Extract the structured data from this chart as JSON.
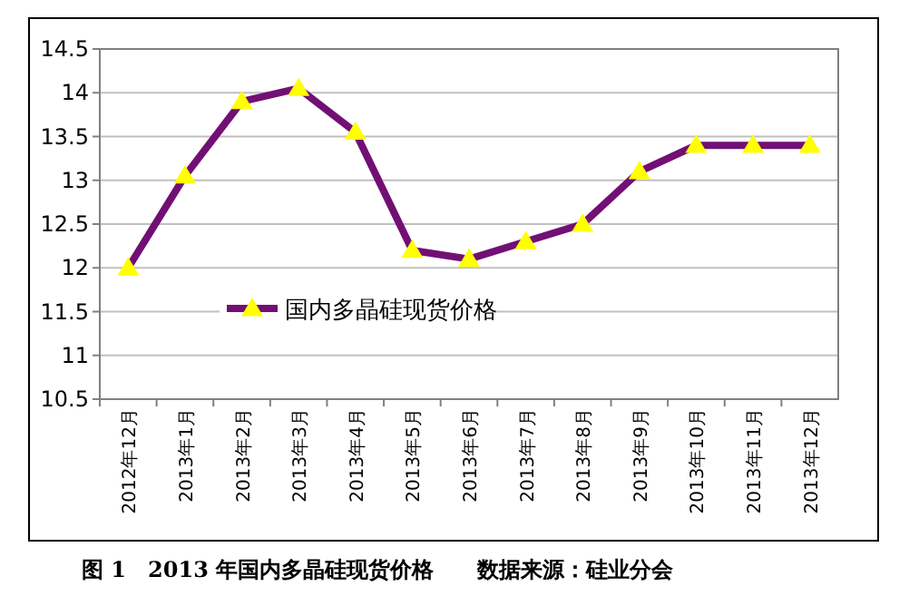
{
  "chart_data": {
    "type": "line",
    "categories": [
      "2012年12月",
      "2013年1月",
      "2013年2月",
      "2013年3月",
      "2013年4月",
      "2013年5月",
      "2013年6月",
      "2013年7月",
      "2013年8月",
      "2013年9月",
      "2013年10月",
      "2013年11月",
      "2013年12月"
    ],
    "series": [
      {
        "name": "国内多晶硅现货价格",
        "color": "#720f74",
        "values": [
          12.0,
          13.05,
          13.9,
          14.05,
          13.55,
          12.2,
          12.1,
          12.3,
          12.5,
          13.1,
          13.4,
          13.4,
          13.4
        ]
      }
    ],
    "ylim": [
      10.5,
      14.5
    ],
    "yticks": [
      10.5,
      11,
      11.5,
      12,
      12.5,
      13,
      13.5,
      14,
      14.5
    ],
    "grid": "y",
    "legend": "bottom",
    "marker": "triangle",
    "line_style": "solid",
    "annotations": [
      "图 1　2013 年国内多晶硅现货价格　　数据来源：硅业分会"
    ]
  }
}
